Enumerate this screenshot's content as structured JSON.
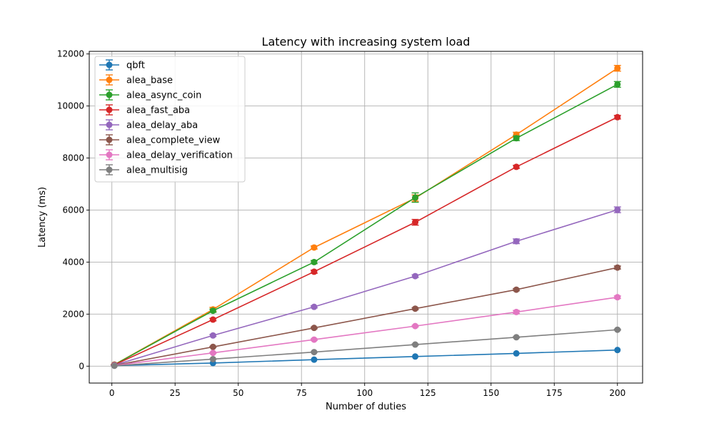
{
  "chart_data": {
    "type": "line",
    "title": "Latency with increasing system load",
    "xlabel": "Number of duties",
    "ylabel": "Latency (ms)",
    "xlim": [
      -8.95,
      209.95
    ],
    "ylim": [
      -650,
      12100
    ],
    "xticks": [
      0,
      25,
      50,
      75,
      100,
      125,
      150,
      175,
      200
    ],
    "yticks": [
      0,
      2000,
      4000,
      6000,
      8000,
      10000,
      12000
    ],
    "grid": true,
    "legend_position": "top-left",
    "x": [
      1,
      40,
      80,
      120,
      160,
      200
    ],
    "series": [
      {
        "name": "qbft",
        "color": "#1f77b4",
        "values": [
          20,
          120,
          250,
          370,
          490,
          620
        ],
        "errors": [
          0,
          0,
          0,
          0,
          0,
          0
        ]
      },
      {
        "name": "alea_base",
        "color": "#ff7f0e",
        "values": [
          60,
          2180,
          4560,
          6460,
          8900,
          11450
        ],
        "errors": [
          10,
          80,
          60,
          120,
          90,
          110
        ]
      },
      {
        "name": "alea_async_coin",
        "color": "#2ca02c",
        "values": [
          55,
          2130,
          4000,
          6480,
          8760,
          10830
        ],
        "errors": [
          10,
          60,
          60,
          180,
          90,
          110
        ]
      },
      {
        "name": "alea_fast_aba",
        "color": "#d62728",
        "values": [
          50,
          1790,
          3630,
          5530,
          7660,
          9570
        ],
        "errors": [
          8,
          50,
          60,
          110,
          60,
          70
        ]
      },
      {
        "name": "alea_delay_aba",
        "color": "#9467bd",
        "values": [
          40,
          1180,
          2280,
          3460,
          4800,
          6010
        ],
        "errors": [
          5,
          40,
          40,
          50,
          90,
          110
        ]
      },
      {
        "name": "alea_complete_view",
        "color": "#8c564b",
        "values": [
          30,
          740,
          1470,
          2210,
          2940,
          3790
        ],
        "errors": [
          4,
          20,
          30,
          40,
          40,
          60
        ]
      },
      {
        "name": "alea_delay_verification",
        "color": "#e377c2",
        "values": [
          25,
          510,
          1020,
          1540,
          2080,
          2650
        ],
        "errors": [
          3,
          20,
          30,
          30,
          60,
          50
        ]
      },
      {
        "name": "alea_multisig",
        "color": "#7f7f7f",
        "values": [
          15,
          270,
          540,
          830,
          1110,
          1400
        ],
        "errors": [
          2,
          10,
          10,
          20,
          20,
          20
        ]
      }
    ]
  }
}
